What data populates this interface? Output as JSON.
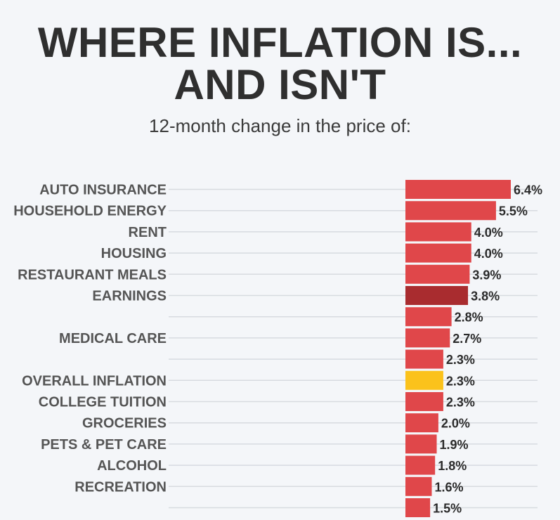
{
  "title_lines": [
    "WHERE INFLATION IS...",
    "AND ISN'T"
  ],
  "subtitle": "12-month change in the price of:",
  "colors": {
    "default": "#e0474a",
    "earnings": "#a92c2f",
    "overall": "#fbc21b",
    "background": "#f4f6f9",
    "grid": "#d7dbe0"
  },
  "chart_data": {
    "type": "bar",
    "orientation": "horizontal",
    "title": "WHERE INFLATION IS... AND ISN'T",
    "subtitle": "12-month change in the price of:",
    "categories": [
      "AUTO INSURANCE",
      "HOUSEHOLD ENERGY",
      "RENT",
      "HOUSING",
      "RESTAURANT MEALS",
      "EARNINGS",
      "",
      "MEDICAL CARE",
      "",
      "OVERALL INFLATION",
      "COLLEGE TUITION",
      "GROCERIES",
      "PETS & PET CARE",
      "ALCOHOL",
      "RECREATION",
      ""
    ],
    "values": [
      6.4,
      5.5,
      4.0,
      4.0,
      3.9,
      3.8,
      2.8,
      2.7,
      2.3,
      2.3,
      2.3,
      2.0,
      1.9,
      1.8,
      1.6,
      1.5
    ],
    "value_labels": [
      "6.4%",
      "5.5%",
      "4.0%",
      "4.0%",
      "3.9%",
      "3.8%",
      "2.8%",
      "2.7%",
      "2.3%",
      "2.3%",
      "2.3%",
      "2.0%",
      "1.9%",
      "1.8%",
      "1.6%",
      "1.5%"
    ],
    "highlight": {
      "EARNINGS": "#a92c2f",
      "OVERALL INFLATION": "#fbc21b"
    },
    "xlim": [
      0,
      6.4
    ],
    "grid": true,
    "legend": "none"
  }
}
